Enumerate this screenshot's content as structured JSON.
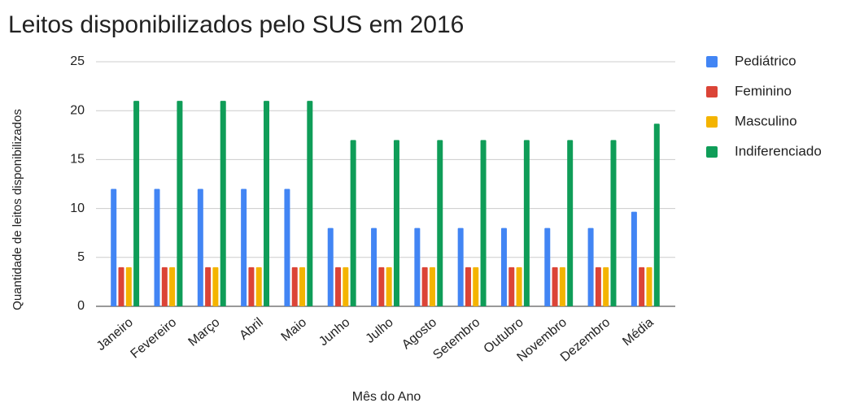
{
  "chart_data": {
    "type": "bar",
    "title": "Leitos disponibilizados pelo SUS em 2016",
    "x_label": "Mês do Ano",
    "y_label": "Quantidade de leitos disponibilizados",
    "categories": [
      "Janeiro",
      "Fevereiro",
      "Março",
      "Abril",
      "Maio",
      "Junho",
      "Julho",
      "Agosto",
      "Setembro",
      "Outubro",
      "Novembro",
      "Dezembro",
      "Média"
    ],
    "series": [
      {
        "name": "Pediátrico",
        "color": "#4285f4",
        "values": [
          12,
          12,
          12,
          12,
          12,
          8,
          8,
          8,
          8,
          8,
          8,
          8,
          9.67
        ]
      },
      {
        "name": "Feminino",
        "color": "#db4437",
        "values": [
          4,
          4,
          4,
          4,
          4,
          4,
          4,
          4,
          4,
          4,
          4,
          4,
          4
        ]
      },
      {
        "name": "Masculino",
        "color": "#f4b400",
        "values": [
          4,
          4,
          4,
          4,
          4,
          4,
          4,
          4,
          4,
          4,
          4,
          4,
          4
        ]
      },
      {
        "name": "Indiferenciado",
        "color": "#0f9d58",
        "values": [
          21,
          21,
          21,
          21,
          21,
          17,
          17,
          17,
          17,
          17,
          17,
          17,
          18.67
        ]
      }
    ],
    "ylim": [
      0,
      25
    ],
    "yticks": [
      0,
      5,
      10,
      15,
      20,
      25
    ],
    "grid": true,
    "legend": "right"
  }
}
